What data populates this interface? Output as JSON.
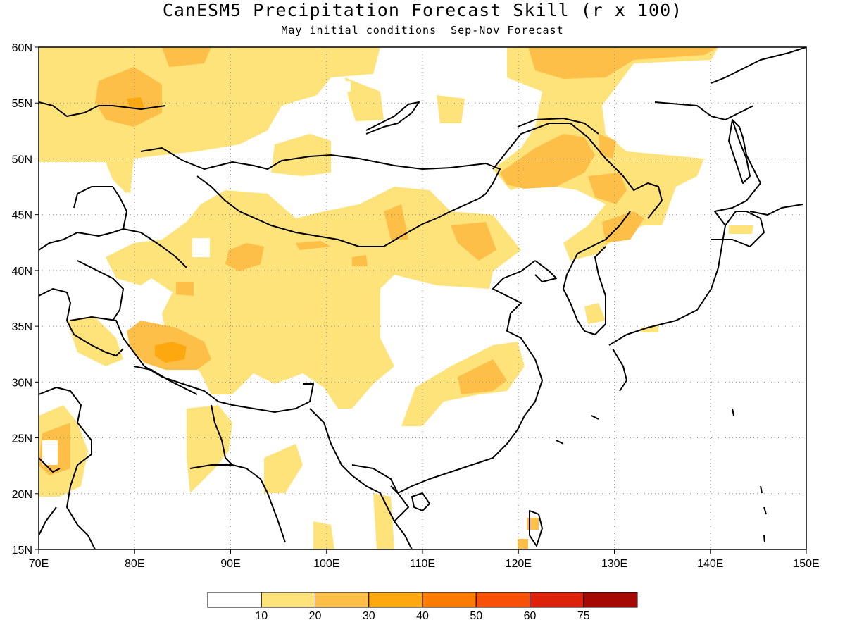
{
  "title": "CanESM5 Precipitation Forecast Skill (r x 100)",
  "subtitle": "May initial conditions  Sep-Nov Forecast",
  "map": {
    "lon_range": [
      70,
      150
    ],
    "lat_range": [
      15,
      60
    ],
    "lon_ticks": [
      "70E",
      "80E",
      "90E",
      "100E",
      "110E",
      "120E",
      "130E",
      "140E",
      "150E"
    ],
    "lat_ticks": [
      "15N",
      "20N",
      "25N",
      "30N",
      "35N",
      "40N",
      "45N",
      "50N",
      "55N",
      "60N"
    ],
    "grid": "dotted"
  },
  "legend": {
    "labels": [
      "10",
      "20",
      "30",
      "40",
      "50",
      "60",
      "75"
    ],
    "colors": [
      "#ffffff",
      "#fee27a",
      "#fdbf47",
      "#fda80f",
      "#fd7b02",
      "#f85006",
      "#dd210b",
      "#a60904"
    ]
  }
}
